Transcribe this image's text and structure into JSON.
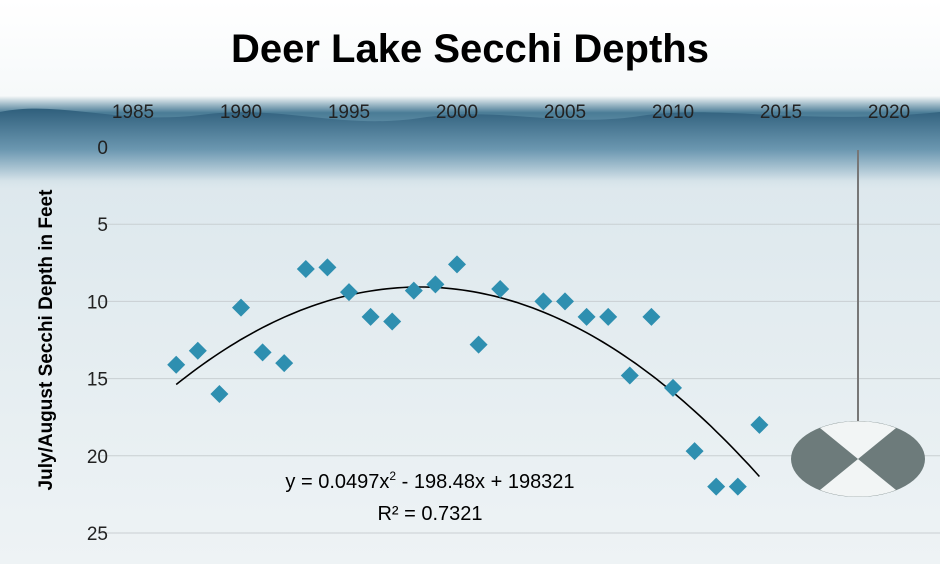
{
  "chart_data": {
    "type": "scatter",
    "title": "Deer Lake Secchi Depths",
    "xlabel": "",
    "ylabel": "July/August  Secchi Depth in Feet",
    "xlim": [
      1985,
      2020
    ],
    "ylim": [
      0,
      25
    ],
    "y_inverted": true,
    "x_axis_position": "top",
    "x_ticks": [
      "1985",
      "1990",
      "1995",
      "2000",
      "2005",
      "2010",
      "2015",
      "2020"
    ],
    "y_ticks": [
      "0",
      "5",
      "10",
      "15",
      "20",
      "25"
    ],
    "grid": "horizontal",
    "marker": "diamond",
    "marker_color": "#2e8fb0",
    "trendline": {
      "type": "polynomial order 2",
      "equation_prefix": "y = 0.0497x",
      "equation_sup": "2",
      "equation_suffix": " - 198.48x + 198321",
      "r_squared": "R² = 0.7321"
    },
    "x": [
      1987,
      1988,
      1989,
      1990,
      1991,
      1992,
      1993,
      1994,
      1995,
      1996,
      1997,
      1998,
      1999,
      2000,
      2001,
      2002,
      2004,
      2005,
      2006,
      2007,
      2008,
      2009,
      2010,
      2011,
      2012,
      2013,
      2014
    ],
    "y": [
      14.1,
      13.2,
      16.0,
      10.4,
      13.3,
      14.0,
      7.9,
      7.8,
      9.4,
      11.0,
      11.3,
      9.3,
      8.9,
      7.6,
      12.8,
      9.2,
      10.0,
      10.0,
      11.0,
      11.0,
      14.8,
      11.0,
      15.6,
      19.7,
      22.0,
      22.0,
      18.0
    ]
  }
}
